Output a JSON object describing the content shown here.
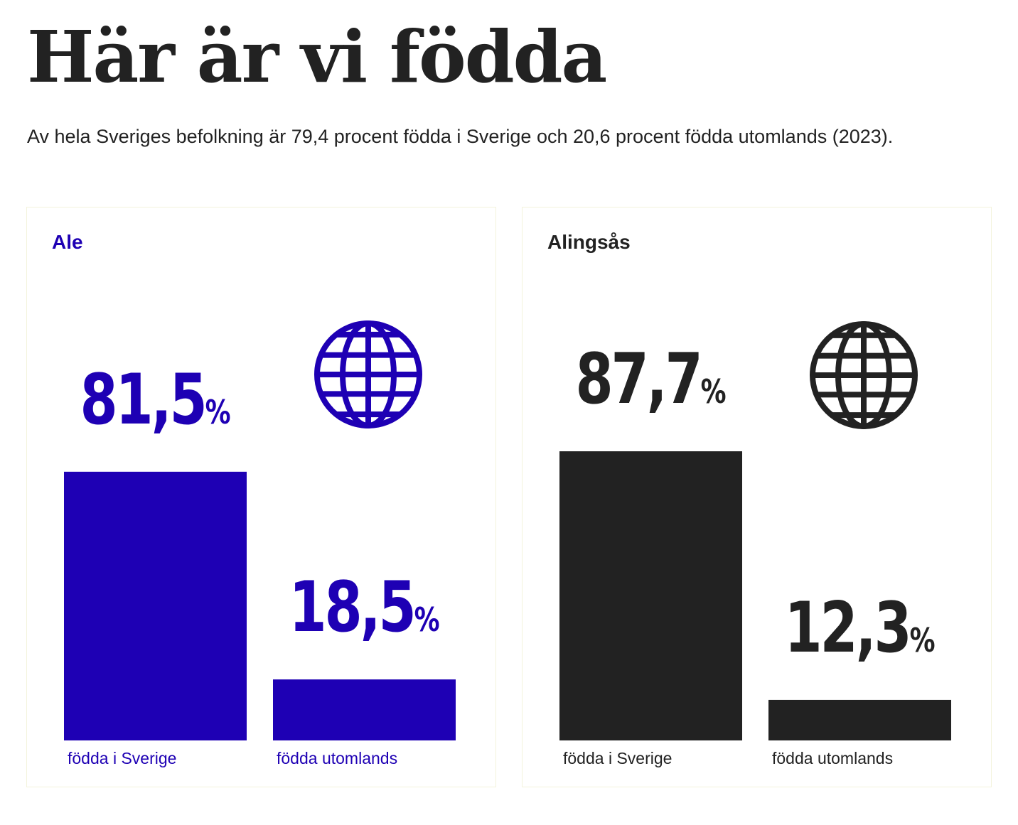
{
  "title": "Här är vi födda",
  "subtitle": "Av hela Sveriges befolkning är 79,4 procent födda i Sverige och 20,6 procent födda utomlands (2023).",
  "icons": [
    "globe-icon"
  ],
  "chart_data": [
    {
      "type": "bar",
      "title": "Ale",
      "color": "#1e00b4",
      "categories": [
        "födda i Sverige",
        "födda utomlands"
      ],
      "values": [
        81.5,
        18.5
      ],
      "value_labels": [
        "81,5",
        "18,5"
      ],
      "unit": "%",
      "ylim": [
        0,
        100
      ],
      "grid": false
    },
    {
      "type": "bar",
      "title": "Alingsås",
      "color": "#222222",
      "categories": [
        "födda i Sverige",
        "födda utomlands"
      ],
      "values": [
        87.7,
        12.3
      ],
      "value_labels": [
        "87,7",
        "12,3"
      ],
      "unit": "%",
      "ylim": [
        0,
        100
      ],
      "grid": false
    }
  ]
}
